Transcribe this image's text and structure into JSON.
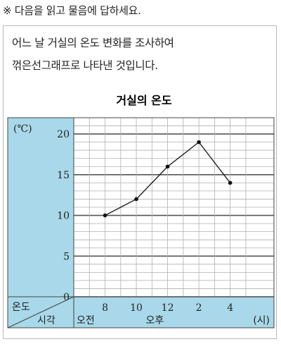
{
  "instruction": "※ 다음을 읽고 물음에 답하세요.",
  "description": [
    "어느 날 거실의 온도 변화를 조사하여",
    "꺾은선그래프로 나타낸 것입니다."
  ],
  "colors": {
    "panel": "#a8d8ea",
    "line": "#111111",
    "grid_major": "#555555",
    "grid_minor": "#b0b0b0"
  },
  "chart_data": {
    "type": "line",
    "title": "거실의 온도",
    "unit_label": "(℃)",
    "y_axis_label": "온도",
    "x_axis_label": "시각",
    "x_unit": "(시)",
    "period_labels": [
      "오전",
      "오후"
    ],
    "categories": [
      "8",
      "10",
      "12",
      "2",
      "4"
    ],
    "y_ticks": [
      0,
      5,
      10,
      15,
      20
    ],
    "ylim": [
      0,
      22
    ],
    "series": [
      {
        "values": [
          10,
          12,
          16,
          19,
          14
        ]
      }
    ]
  }
}
